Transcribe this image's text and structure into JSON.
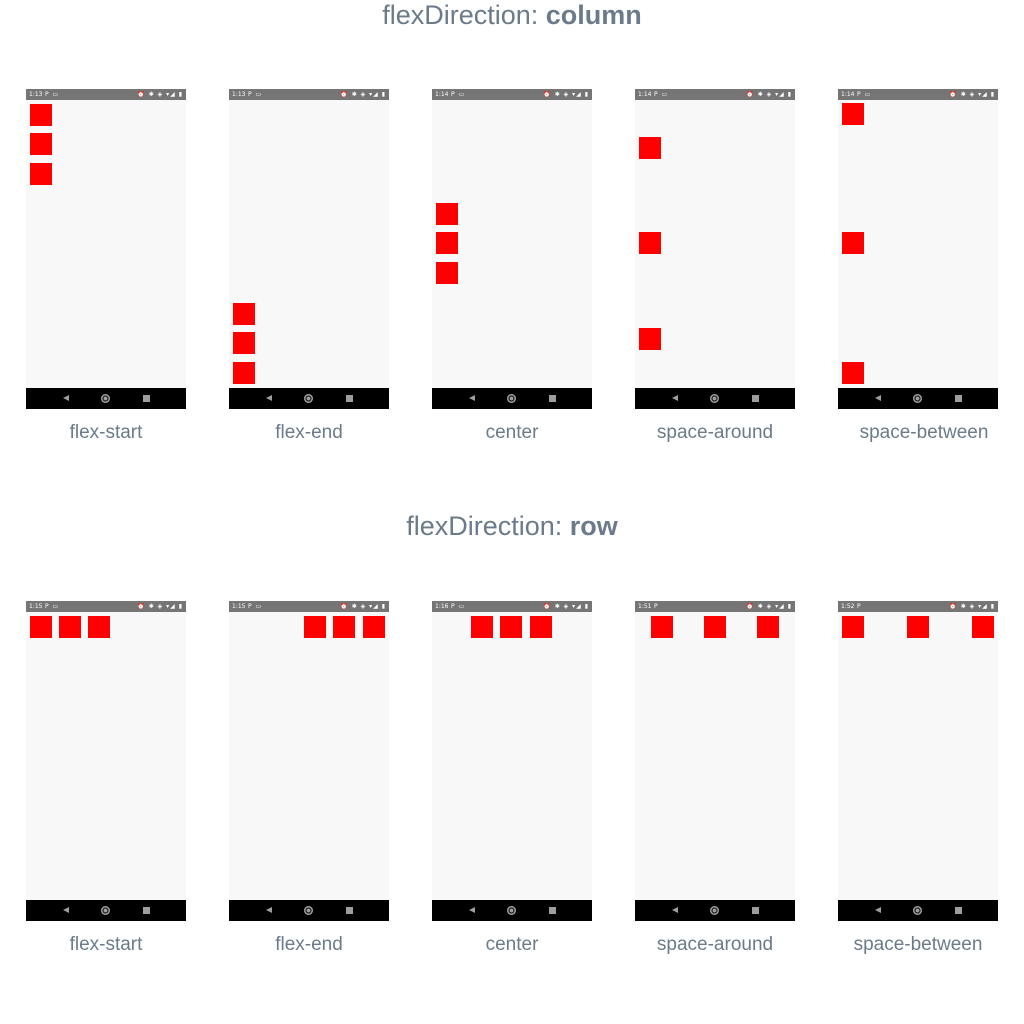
{
  "sections": [
    {
      "title_prefix": "flexDirection: ",
      "title_value": "column",
      "phones": [
        {
          "caption": "flex-start",
          "time": "1:13"
        },
        {
          "caption": "flex-end",
          "time": "1:13"
        },
        {
          "caption": "center",
          "time": "1:14"
        },
        {
          "caption": "space-around",
          "time": "1:14"
        },
        {
          "caption": "space-between",
          "time": "1:14"
        }
      ]
    },
    {
      "title_prefix": "flexDirection: ",
      "title_value": "row",
      "phones": [
        {
          "caption": "flex-start",
          "time": "1:15"
        },
        {
          "caption": "flex-end",
          "time": "1:15"
        },
        {
          "caption": "center",
          "time": "1:16"
        },
        {
          "caption": "space-around",
          "time": "1:51"
        },
        {
          "caption": "space-between",
          "time": "1:52"
        }
      ]
    }
  ],
  "colors": {
    "box": "#ff0000",
    "screen": "#f8f8f8",
    "status_bar": "#757575",
    "nav_bar": "#000000",
    "caption_text": "#6b7b8a"
  },
  "icons": {
    "status_left": [
      "p-icon",
      "screen-icon"
    ],
    "status_right": [
      "alarm-icon",
      "bluetooth-icon",
      "vibrate-icon",
      "wifi-icon",
      "signal-icon",
      "battery-icon"
    ],
    "nav": [
      "back-icon",
      "home-icon",
      "recents-icon"
    ]
  }
}
